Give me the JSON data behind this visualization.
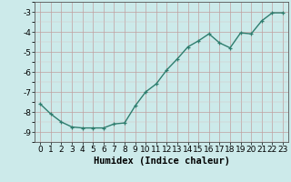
{
  "x": [
    0,
    1,
    2,
    3,
    4,
    5,
    6,
    7,
    8,
    9,
    10,
    11,
    12,
    13,
    14,
    15,
    16,
    17,
    18,
    19,
    20,
    21,
    22,
    23
  ],
  "y": [
    -7.6,
    -8.1,
    -8.5,
    -8.75,
    -8.8,
    -8.8,
    -8.8,
    -8.6,
    -8.55,
    -7.7,
    -7.0,
    -6.6,
    -5.9,
    -5.35,
    -4.75,
    -4.45,
    -4.1,
    -4.55,
    -4.8,
    -4.05,
    -4.1,
    -3.45,
    -3.05,
    -3.05
  ],
  "line_color": "#2e7d6e",
  "marker": "+",
  "marker_color": "#2e7d6e",
  "bg_color": "#cceaea",
  "grid_major_color": "#c0a0a0",
  "grid_minor_color": "#d8c0c0",
  "xlabel": "Humidex (Indice chaleur)",
  "xlim": [
    -0.5,
    23.5
  ],
  "ylim": [
    -9.5,
    -2.5
  ],
  "yticks": [
    -9,
    -8,
    -7,
    -6,
    -5,
    -4,
    -3
  ],
  "xticks": [
    0,
    1,
    2,
    3,
    4,
    5,
    6,
    7,
    8,
    9,
    10,
    11,
    12,
    13,
    14,
    15,
    16,
    17,
    18,
    19,
    20,
    21,
    22,
    23
  ],
  "xlabel_fontsize": 7.5,
  "tick_fontsize": 6.5,
  "linewidth": 1.0
}
